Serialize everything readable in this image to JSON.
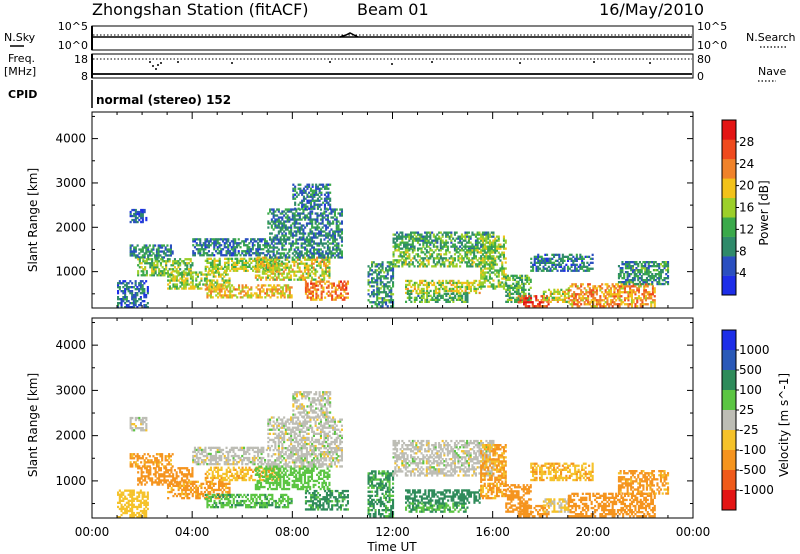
{
  "header": {
    "station": "Zhongshan Station (fitACF)",
    "beam": "Beam 01",
    "date": "16/May/2010"
  },
  "status_panel": {
    "nsky_label": "N.Sky",
    "nsky_top": "10^5",
    "nsky_bottom": "10^0",
    "nsearch_label": "N.Search",
    "nsearch_top": "10^5",
    "nsearch_bottom": "10^0",
    "freq_label": "Freq.",
    "freq_unit": "[MHz]",
    "freq_top": "18",
    "freq_bottom": "8",
    "nave_label": "Nave",
    "nave_top": "80",
    "nave_bottom": "0",
    "cpid_label": "CPID",
    "cpid_value": "normal (stereo) 152"
  },
  "x_axis": {
    "label": "Time UT",
    "ticks": [
      "00:00",
      "04:00",
      "08:00",
      "12:00",
      "16:00",
      "20:00",
      "00:00"
    ]
  },
  "power_colorbar": {
    "label": "Power [dB]",
    "ticks": [
      "4",
      "8",
      "12",
      "16",
      "20",
      "24",
      "28"
    ],
    "colors": [
      "#1d2ee8",
      "#2a4fc0",
      "#2f8a6a",
      "#3aa94a",
      "#9ccf2a",
      "#f2c21a",
      "#f0822a",
      "#ef4a1e",
      "#e31414"
    ]
  },
  "velocity_colorbar": {
    "label": "Velocity [m s^-1]",
    "ticks": [
      "1000",
      "500",
      "100",
      "25",
      "-25",
      "-100",
      "-500",
      "-1000"
    ],
    "colors": [
      "#1d2ee8",
      "#2a59b8",
      "#2e8b5a",
      "#5bc542",
      "#bdbdb5",
      "#f5c22a",
      "#f5941e",
      "#ef5a1a",
      "#e31414"
    ]
  },
  "chart_data": [
    {
      "type": "heatmap",
      "title": "Power",
      "xlabel": "Time UT",
      "ylabel": "Slant Range [km]",
      "xlim": [
        0,
        24
      ],
      "ylim": [
        180,
        4600
      ],
      "yticks": [
        1000,
        2000,
        3000,
        4000
      ],
      "grid": false,
      "quantity": "power_dB",
      "clim": [
        0,
        32
      ],
      "regions": [
        {
          "t": [
            1.0,
            2.2
          ],
          "r": [
            180,
            800
          ],
          "v": 6
        },
        {
          "t": [
            1.5,
            2.2
          ],
          "r": [
            2100,
            2400
          ],
          "v": 6
        },
        {
          "t": [
            1.5,
            3.2
          ],
          "r": [
            1300,
            1600
          ],
          "v": 9
        },
        {
          "t": [
            1.8,
            4.0
          ],
          "r": [
            900,
            1300
          ],
          "v": 14
        },
        {
          "t": [
            3.0,
            5.5
          ],
          "r": [
            600,
            1000
          ],
          "v": 16
        },
        {
          "t": [
            4.0,
            7.0
          ],
          "r": [
            1350,
            1750
          ],
          "v": 8
        },
        {
          "t": [
            4.5,
            7.5
          ],
          "r": [
            1000,
            1300
          ],
          "v": 16
        },
        {
          "t": [
            4.5,
            8.0
          ],
          "r": [
            400,
            700
          ],
          "v": 20
        },
        {
          "t": [
            6.5,
            9.5
          ],
          "r": [
            800,
            1300
          ],
          "v": 18
        },
        {
          "t": [
            7.0,
            10.0
          ],
          "r": [
            1300,
            2400
          ],
          "v": 9
        },
        {
          "t": [
            8.0,
            9.5
          ],
          "r": [
            2400,
            2950
          ],
          "v": 8
        },
        {
          "t": [
            8.5,
            10.2
          ],
          "r": [
            350,
            800
          ],
          "v": 24
        },
        {
          "t": [
            11.0,
            12.0
          ],
          "r": [
            200,
            1200
          ],
          "v": 10
        },
        {
          "t": [
            12.0,
            16.0
          ],
          "r": [
            1500,
            1900
          ],
          "v": 11
        },
        {
          "t": [
            12.0,
            16.0
          ],
          "r": [
            1100,
            1500
          ],
          "v": 14
        },
        {
          "t": [
            12.5,
            15.5
          ],
          "r": [
            500,
            800
          ],
          "v": 17
        },
        {
          "t": [
            12.5,
            15.0
          ],
          "r": [
            300,
            500
          ],
          "v": 12
        },
        {
          "t": [
            15.5,
            16.5
          ],
          "r": [
            600,
            1800
          ],
          "v": 15
        },
        {
          "t": [
            16.5,
            17.5
          ],
          "r": [
            300,
            900
          ],
          "v": 13
        },
        {
          "t": [
            17.0,
            18.2
          ],
          "r": [
            200,
            450
          ],
          "v": 28
        },
        {
          "t": [
            17.5,
            20.0
          ],
          "r": [
            1000,
            1400
          ],
          "v": 8
        },
        {
          "t": [
            18.0,
            19.0
          ],
          "r": [
            300,
            600
          ],
          "v": 18
        },
        {
          "t": [
            19.0,
            22.5
          ],
          "r": [
            200,
            700
          ],
          "v": 22
        },
        {
          "t": [
            21.0,
            23.0
          ],
          "r": [
            700,
            1200
          ],
          "v": 10
        }
      ]
    },
    {
      "type": "heatmap",
      "title": "Velocity",
      "xlabel": "Time UT",
      "ylabel": "Slant Range [km]",
      "xlim": [
        0,
        24
      ],
      "ylim": [
        180,
        4600
      ],
      "yticks": [
        1000,
        2000,
        3000,
        4000
      ],
      "grid": false,
      "quantity": "velocity_ms",
      "regions": [
        {
          "t": [
            1.0,
            2.2
          ],
          "r": [
            180,
            800
          ],
          "v": -60
        },
        {
          "t": [
            1.5,
            2.2
          ],
          "r": [
            2100,
            2400
          ],
          "v": 0
        },
        {
          "t": [
            1.5,
            3.2
          ],
          "r": [
            1300,
            1600
          ],
          "v": -150
        },
        {
          "t": [
            1.8,
            4.0
          ],
          "r": [
            900,
            1300
          ],
          "v": -200
        },
        {
          "t": [
            3.0,
            5.5
          ],
          "r": [
            600,
            1000
          ],
          "v": -150
        },
        {
          "t": [
            4.0,
            7.0
          ],
          "r": [
            1350,
            1750
          ],
          "v": 0
        },
        {
          "t": [
            4.5,
            7.5
          ],
          "r": [
            1000,
            1300
          ],
          "v": -80
        },
        {
          "t": [
            4.5,
            8.0
          ],
          "r": [
            400,
            700
          ],
          "v": 80
        },
        {
          "t": [
            6.5,
            9.5
          ],
          "r": [
            800,
            1300
          ],
          "v": 60
        },
        {
          "t": [
            7.0,
            10.0
          ],
          "r": [
            1300,
            2400
          ],
          "v": 0
        },
        {
          "t": [
            8.0,
            9.5
          ],
          "r": [
            2400,
            2950
          ],
          "v": 0
        },
        {
          "t": [
            8.5,
            10.2
          ],
          "r": [
            350,
            800
          ],
          "v": 150
        },
        {
          "t": [
            11.0,
            12.0
          ],
          "r": [
            200,
            1200
          ],
          "v": 120
        },
        {
          "t": [
            12.0,
            16.0
          ],
          "r": [
            1500,
            1900
          ],
          "v": 0
        },
        {
          "t": [
            12.0,
            16.0
          ],
          "r": [
            1100,
            1500
          ],
          "v": 0
        },
        {
          "t": [
            12.5,
            15.5
          ],
          "r": [
            500,
            800
          ],
          "v": 200
        },
        {
          "t": [
            12.5,
            15.0
          ],
          "r": [
            300,
            500
          ],
          "v": 100
        },
        {
          "t": [
            15.5,
            16.5
          ],
          "r": [
            600,
            1800
          ],
          "v": -120
        },
        {
          "t": [
            16.5,
            17.5
          ],
          "r": [
            300,
            900
          ],
          "v": -300
        },
        {
          "t": [
            17.0,
            18.2
          ],
          "r": [
            200,
            450
          ],
          "v": -250
        },
        {
          "t": [
            17.5,
            20.0
          ],
          "r": [
            1000,
            1400
          ],
          "v": -80
        },
        {
          "t": [
            18.0,
            19.0
          ],
          "r": [
            300,
            600
          ],
          "v": -40
        },
        {
          "t": [
            19.0,
            22.5
          ],
          "r": [
            200,
            700
          ],
          "v": -300
        },
        {
          "t": [
            21.0,
            23.0
          ],
          "r": [
            700,
            1200
          ],
          "v": -150
        }
      ]
    }
  ]
}
